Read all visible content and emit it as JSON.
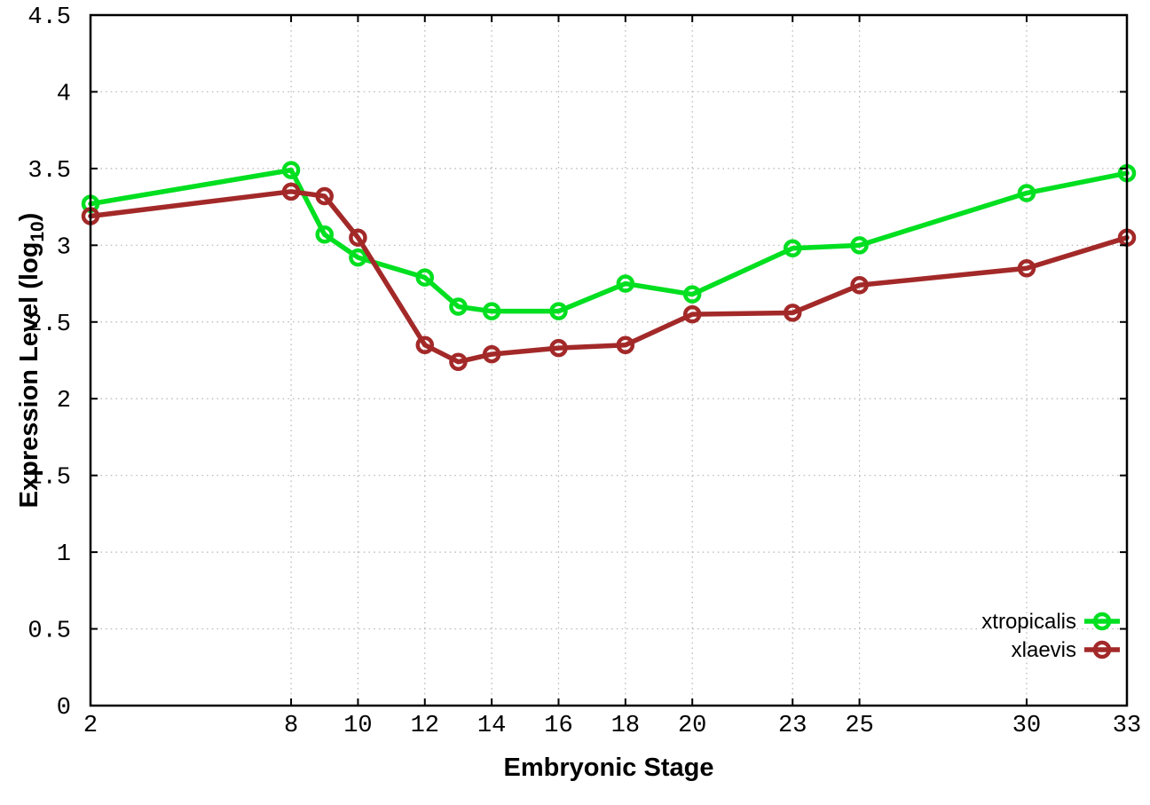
{
  "chart_data": {
    "type": "line",
    "title": "",
    "xlabel": "Embryonic Stage",
    "ylabel": "Expression Level (log10)",
    "ylabel_parts": {
      "prefix": "Expression Level (log",
      "sub": "10",
      "suffix": ")"
    },
    "xlim": [
      2,
      33
    ],
    "ylim": [
      0,
      4.5
    ],
    "xticks": [
      2,
      8,
      10,
      12,
      14,
      16,
      18,
      20,
      23,
      25,
      30,
      33
    ],
    "yticks": [
      {
        "value": 0,
        "label": "0"
      },
      {
        "value": 0.5,
        "label": "0.5"
      },
      {
        "value": 1,
        "label": "1"
      },
      {
        "value": 1.5,
        "label": "1.5"
      },
      {
        "value": 2,
        "label": "2"
      },
      {
        "value": 2.5,
        "label": "2.5"
      },
      {
        "value": 3,
        "label": "3"
      },
      {
        "value": 3.5,
        "label": "3.5"
      },
      {
        "value": 4,
        "label": "4"
      },
      {
        "value": 4.5,
        "label": "4.5"
      }
    ],
    "grid": true,
    "legend_position": "inside-bottom-right",
    "x": [
      2,
      8,
      9,
      10,
      12,
      13,
      14,
      16,
      18,
      20,
      23,
      25,
      30,
      33
    ],
    "series": [
      {
        "name": "xtropicalis",
        "color": "#00df20",
        "values": [
          3.27,
          3.49,
          3.07,
          2.92,
          2.79,
          2.6,
          2.57,
          2.57,
          2.75,
          2.68,
          2.98,
          3.0,
          3.34,
          3.47
        ]
      },
      {
        "name": "xlaevis",
        "color": "#a32929",
        "values": [
          3.19,
          3.35,
          3.32,
          3.05,
          2.35,
          2.24,
          2.29,
          2.33,
          2.35,
          2.55,
          2.56,
          2.74,
          2.85,
          3.05
        ]
      }
    ],
    "colors": {
      "axis": "#000000",
      "grid": "#b3b3b3",
      "text": "#000000",
      "background": "#ffffff"
    }
  }
}
